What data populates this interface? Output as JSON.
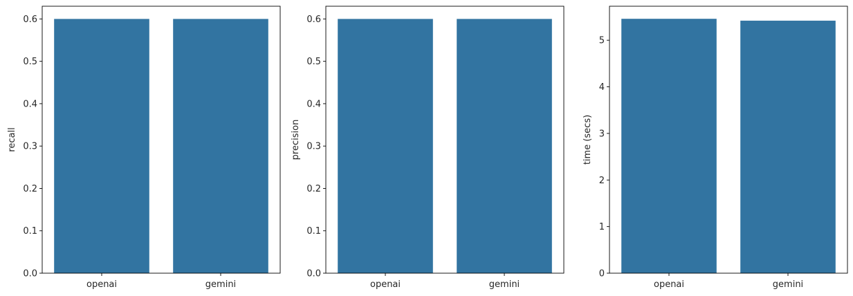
{
  "colors": {
    "bar": "#3274a1",
    "axis": "#000000",
    "text": "#262626"
  },
  "chart_data": [
    {
      "type": "bar",
      "categories": [
        "openai",
        "gemini"
      ],
      "values": [
        0.6,
        0.6
      ],
      "xlabel": "",
      "ylabel": "recall",
      "ylim": [
        0,
        0.63
      ],
      "yticks": [
        0.0,
        0.1,
        0.2,
        0.3,
        0.4,
        0.5,
        0.6
      ],
      "ytick_labels": [
        "0.0",
        "0.1",
        "0.2",
        "0.3",
        "0.4",
        "0.5",
        "0.6"
      ],
      "grid": false
    },
    {
      "type": "bar",
      "categories": [
        "openai",
        "gemini"
      ],
      "values": [
        0.6,
        0.6
      ],
      "xlabel": "",
      "ylabel": "precision",
      "ylim": [
        0,
        0.63
      ],
      "yticks": [
        0.0,
        0.1,
        0.2,
        0.3,
        0.4,
        0.5,
        0.6
      ],
      "ytick_labels": [
        "0.0",
        "0.1",
        "0.2",
        "0.3",
        "0.4",
        "0.5",
        "0.6"
      ],
      "grid": false
    },
    {
      "type": "bar",
      "categories": [
        "openai",
        "gemini"
      ],
      "values": [
        5.46,
        5.42
      ],
      "xlabel": "",
      "ylabel": "time (secs)",
      "ylim": [
        0,
        5.73
      ],
      "yticks": [
        0,
        1,
        2,
        3,
        4,
        5
      ],
      "ytick_labels": [
        "0",
        "1",
        "2",
        "3",
        "4",
        "5"
      ],
      "grid": false
    }
  ]
}
